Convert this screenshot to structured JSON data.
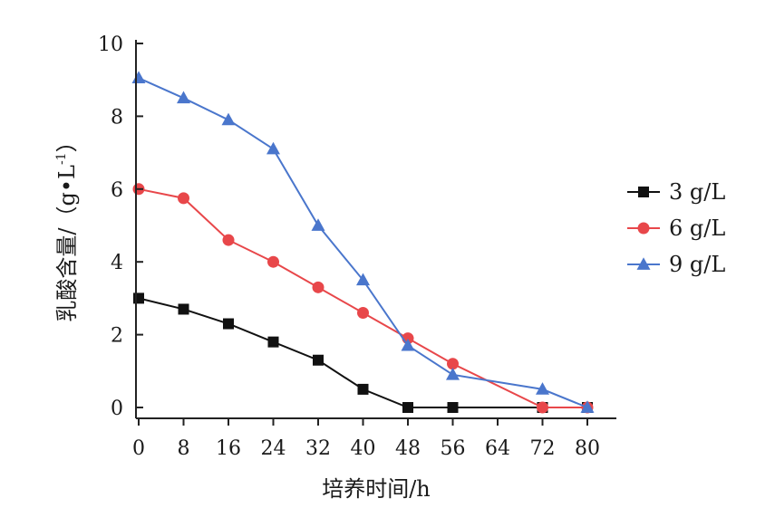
{
  "chart_data": {
    "type": "line",
    "xlabel": "培养时间/h",
    "ylabel": "乳酸含量/（g•L",
    "ylabel_sup": "-1",
    "ylabel_close": "）",
    "xlim": [
      0,
      80
    ],
    "ylim": [
      0,
      10
    ],
    "x_ticks": [
      0,
      8,
      16,
      24,
      32,
      40,
      48,
      56,
      64,
      72,
      80
    ],
    "y_ticks": [
      0,
      2,
      4,
      6,
      8,
      10
    ],
    "grid": false,
    "legend_position": "right",
    "series": [
      {
        "name": "3 g/L",
        "color": "#111111",
        "marker": "square",
        "x": [
          0,
          8,
          16,
          24,
          32,
          40,
          48,
          56,
          72,
          80
        ],
        "y": [
          3.0,
          2.7,
          2.3,
          1.8,
          1.3,
          0.5,
          0.0,
          0.0,
          0.0,
          0.0
        ]
      },
      {
        "name": "6 g/L",
        "color": "#e8474a",
        "marker": "circle",
        "x": [
          0,
          8,
          16,
          24,
          32,
          40,
          48,
          56,
          72,
          80
        ],
        "y": [
          6.0,
          5.75,
          4.6,
          4.0,
          3.3,
          2.6,
          1.9,
          1.2,
          0.0,
          0.0
        ]
      },
      {
        "name": "9 g/L",
        "color": "#4a76cc",
        "marker": "triangle",
        "x": [
          0,
          8,
          16,
          24,
          32,
          40,
          48,
          56,
          72,
          80
        ],
        "y": [
          9.05,
          8.5,
          7.9,
          7.1,
          5.0,
          3.5,
          1.7,
          0.9,
          0.5,
          0.0
        ]
      }
    ]
  }
}
